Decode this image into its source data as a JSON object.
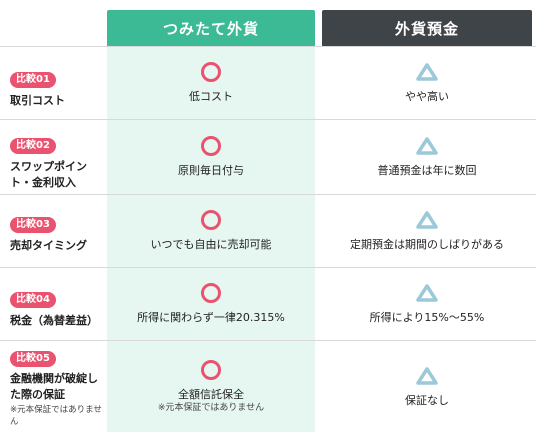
{
  "colors": {
    "accent_green": "#3cb995",
    "green_bg": "#e6f6f1",
    "dark_header": "#3f4449",
    "badge_pink": "#e9536f",
    "triangle_blue": "#9cc9d8"
  },
  "header": {
    "col_a": "つみたて外貨",
    "col_b": "外貨預金"
  },
  "rows": [
    {
      "badge": "比較01",
      "title": "取引コスト",
      "note": "",
      "a_icon": "circle-icon",
      "a_text": "低コスト",
      "a_note": "",
      "b_icon": "triangle-icon",
      "b_text": "やや高い"
    },
    {
      "badge": "比較02",
      "title": "スワップポイント・金利収入",
      "note": "",
      "a_icon": "circle-icon",
      "a_text": "原則毎日付与",
      "a_note": "",
      "b_icon": "triangle-icon",
      "b_text": "普通預金は年に数回"
    },
    {
      "badge": "比較03",
      "title": "売却タイミング",
      "note": "",
      "a_icon": "circle-icon",
      "a_text": "いつでも自由に売却可能",
      "a_note": "",
      "b_icon": "triangle-icon",
      "b_text": "定期預金は期間のしばりがある"
    },
    {
      "badge": "比較04",
      "title": "税金（為替差益）",
      "note": "",
      "a_icon": "circle-icon",
      "a_text": "所得に関わらず一律20.315%",
      "a_note": "",
      "b_icon": "triangle-icon",
      "b_text": "所得により15%〜55%"
    },
    {
      "badge": "比較05",
      "title": "金融機関が破綻した際の保証",
      "note": "※元本保証ではありません",
      "a_icon": "circle-icon",
      "a_text": "全額信託保全",
      "a_note": "※元本保証ではありません",
      "b_icon": "triangle-icon",
      "b_text": "保証なし"
    }
  ]
}
